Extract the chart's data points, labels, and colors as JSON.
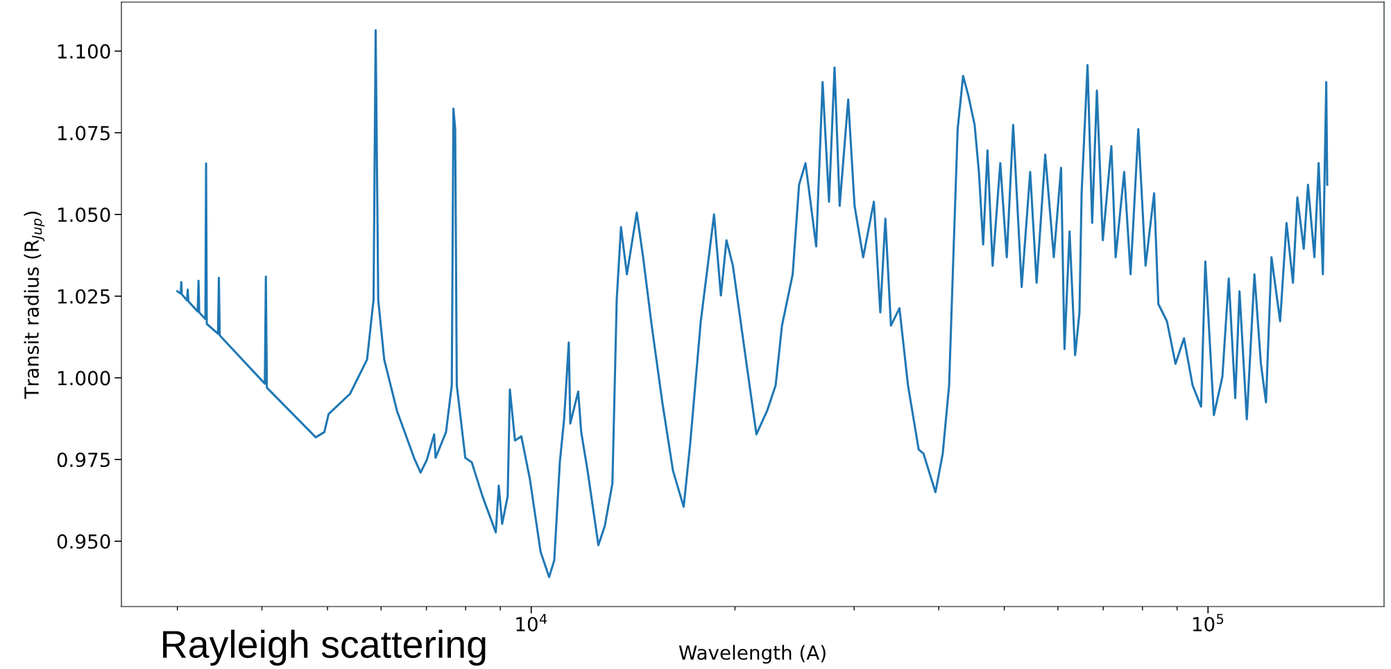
{
  "chart_data": {
    "type": "line",
    "xlabel": "Wavelength (A)",
    "ylabel": "Transit radius (R$_{Jup}$)",
    "annotations": [
      "Rayleigh scattering"
    ],
    "log": "x",
    "grid": false,
    "marker": "none",
    "line_style": "solid",
    "xlim": [
      2480,
      182000
    ],
    "ylim": [
      0.93,
      1.115
    ],
    "xticks": [
      {
        "value": 3000,
        "label": null
      },
      {
        "value": 4000,
        "label": null
      },
      {
        "value": 5000,
        "label": null
      },
      {
        "value": 6000,
        "label": null
      },
      {
        "value": 7000,
        "label": null
      },
      {
        "value": 8000,
        "label": null
      },
      {
        "value": 9000,
        "label": null
      },
      {
        "value": 10000,
        "label": "10$^{4}$"
      },
      {
        "value": 20000,
        "label": null
      },
      {
        "value": 30000,
        "label": null
      },
      {
        "value": 40000,
        "label": null
      },
      {
        "value": 50000,
        "label": null
      },
      {
        "value": 60000,
        "label": null
      },
      {
        "value": 70000,
        "label": null
      },
      {
        "value": 80000,
        "label": null
      },
      {
        "value": 90000,
        "label": null
      },
      {
        "value": 100000,
        "label": "10$^{5}$"
      }
    ],
    "yticks": [
      {
        "value": 0.95,
        "label": "0.950"
      },
      {
        "value": 0.975,
        "label": "0.975"
      },
      {
        "value": 1.0,
        "label": "1.000"
      },
      {
        "value": 1.025,
        "label": "1.025"
      },
      {
        "value": 1.05,
        "label": "1.050"
      },
      {
        "value": 1.075,
        "label": "1.075"
      },
      {
        "value": 1.1,
        "label": "1.100"
      }
    ],
    "series": [
      {
        "color": "#1f77b4",
        "x": [
          3000,
          3035,
          3040,
          3045,
          3100,
          3108,
          3115,
          3215,
          3224,
          3232,
          3300,
          3308,
          3316,
          3445,
          3455,
          3465,
          4040,
          4054,
          4068,
          4804,
          4946,
          5019,
          5398,
          5720,
          5848,
          5890,
          5942,
          6064,
          6333,
          6712,
          6862,
          7011,
          7187,
          7222,
          7483,
          7631,
          7674,
          7720,
          7762,
          7991,
          8166,
          8470,
          8864,
          8954,
          9057,
          9230,
          9299,
          9462,
          9669,
          9954,
          10323,
          10627,
          10815,
          11022,
          11183,
          11362,
          11420,
          11733,
          11853,
          12113,
          12566,
          12841,
          13181,
          13375,
          13570,
          13847,
          14318,
          14632,
          15066,
          15620,
          16196,
          16797,
          17168,
          17803,
          18197,
          18626,
          19064,
          19429,
          19859,
          20592,
          21513,
          22309,
          22966,
          23469,
          24339,
          24872,
          25424,
          26364,
          26946,
          27539,
          28064,
          28558,
          29398,
          30043,
          30934,
          32080,
          32790,
          33360,
          33997,
          35000,
          36030,
          37360,
          37980,
          39560,
          40550,
          41440,
          42040,
          42660,
          43460,
          44230,
          45200,
          45860,
          46530,
          47220,
          48050,
          49320,
          50420,
          51530,
          53040,
          54600,
          55810,
          57470,
          59170,
          60650,
          61360,
          62430,
          63620,
          64570,
          65040,
          66370,
          67420,
          68510,
          69910,
          71970,
          73030,
          75180,
          76830,
          78880,
          80850,
          83240,
          84450,
          86960,
          89520,
          92150,
          94880,
          97650,
          99080,
          102000,
          105000,
          107300,
          109700,
          111300,
          114100,
          117100,
          119700,
          121800,
          124100,
          127800,
          130600,
          133500,
          135500,
          138500,
          140500,
          143600,
          145700,
          147800,
          149500,
          150000
        ],
        "values": [
          1.0265,
          1.0258,
          1.0293,
          1.0256,
          1.0237,
          1.027,
          1.0234,
          1.0203,
          1.0297,
          1.02,
          1.018,
          1.0656,
          1.0165,
          1.0135,
          1.0306,
          1.013,
          0.9982,
          1.031,
          0.997,
          0.9818,
          0.9834,
          0.9889,
          0.9951,
          1.0056,
          1.0239,
          1.1064,
          1.0239,
          1.0056,
          0.9899,
          0.9755,
          0.971,
          0.9749,
          0.9827,
          0.9755,
          0.9834,
          0.9977,
          1.0824,
          1.0761,
          0.9977,
          0.9755,
          0.9742,
          0.9638,
          0.9527,
          0.967,
          0.9553,
          0.9638,
          0.9964,
          0.9808,
          0.9821,
          0.969,
          0.9468,
          0.939,
          0.9442,
          0.9742,
          0.9873,
          1.0108,
          0.986,
          0.9958,
          0.9834,
          0.9716,
          0.9488,
          0.9546,
          0.9677,
          1.0239,
          1.0461,
          1.0317,
          1.0506,
          1.0369,
          1.016,
          0.9925,
          0.9716,
          0.9605,
          0.9795,
          1.0173,
          1.033,
          1.05,
          1.0252,
          1.0421,
          1.0343,
          1.0108,
          0.9827,
          0.9899,
          0.9977,
          1.016,
          1.0317,
          1.0591,
          1.0657,
          1.0402,
          1.0905,
          1.0539,
          1.095,
          1.0526,
          1.0852,
          1.0526,
          1.0369,
          1.0539,
          1.02,
          1.0487,
          1.016,
          1.0213,
          0.9977,
          0.9781,
          0.9768,
          0.965,
          0.9768,
          0.9977,
          1.0369,
          1.0761,
          1.0924,
          1.0865,
          1.0774,
          1.063,
          1.0408,
          1.0696,
          1.0343,
          1.0657,
          1.0369,
          1.0774,
          1.0278,
          1.063,
          1.0291,
          1.0683,
          1.0369,
          1.0643,
          1.0088,
          1.0448,
          1.0069,
          1.02,
          1.0565,
          1.0957,
          1.0474,
          1.0879,
          1.0421,
          1.0709,
          1.0369,
          1.063,
          1.0317,
          1.0761,
          1.0343,
          1.0565,
          1.0226,
          1.0173,
          1.0043,
          1.0121,
          0.9977,
          0.9912,
          1.0356,
          0.9886,
          1.0003,
          1.0304,
          0.9938,
          1.0265,
          0.9873,
          1.0317,
          1.0043,
          0.9925,
          1.0369,
          1.0173,
          1.0474,
          1.0291,
          1.0552,
          1.0395,
          1.0591,
          1.0369,
          1.0657,
          1.0317,
          1.0905,
          1.0591
        ]
      }
    ]
  }
}
